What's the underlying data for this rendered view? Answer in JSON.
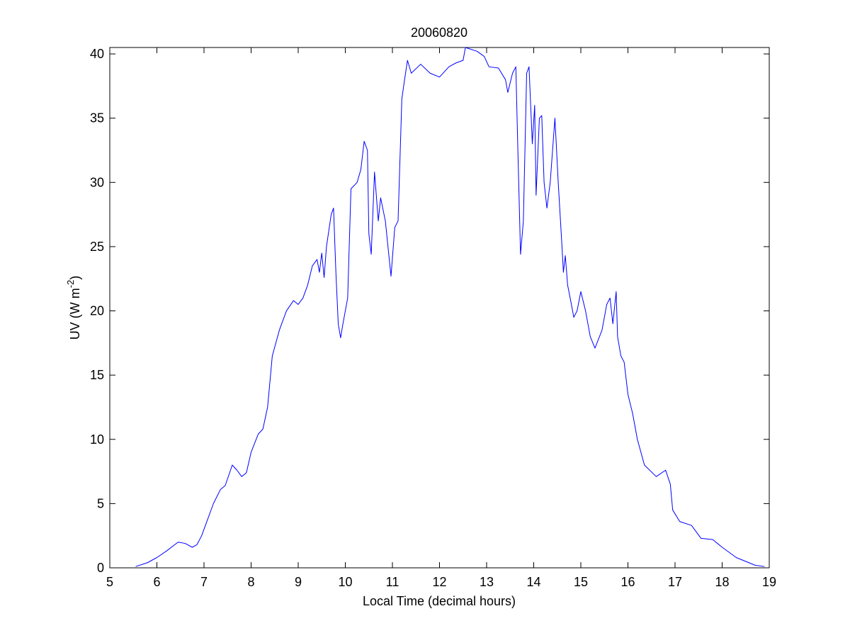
{
  "chart_data": {
    "type": "line",
    "title": "20060820",
    "xlabel": "Local Time (decimal hours)",
    "ylabel": {
      "text": "UV (W m",
      "superscript": "-2",
      "close": ")"
    },
    "xlim": [
      5,
      19
    ],
    "xticks": [
      5,
      6,
      7,
      8,
      9,
      10,
      11,
      12,
      13,
      14,
      15,
      16,
      17,
      18,
      19
    ],
    "ylim": [
      0,
      40.5
    ],
    "yticks": [
      0,
      5,
      10,
      15,
      20,
      25,
      30,
      35,
      40
    ],
    "grid": false,
    "series": [
      {
        "color": "#0000ff",
        "x": [
          5.55,
          5.8,
          6.0,
          6.2,
          6.45,
          6.6,
          6.75,
          6.85,
          6.95,
          7.05,
          7.2,
          7.35,
          7.45,
          7.6,
          7.7,
          7.8,
          7.9,
          8.0,
          8.15,
          8.25,
          8.35,
          8.45,
          8.6,
          8.75,
          8.9,
          9.0,
          9.1,
          9.2,
          9.3,
          9.4,
          9.45,
          9.5,
          9.55,
          9.6,
          9.7,
          9.75,
          9.8,
          9.85,
          9.9,
          9.95,
          10.05,
          10.12,
          10.25,
          10.33,
          10.4,
          10.47,
          10.5,
          10.55,
          10.62,
          10.7,
          10.75,
          10.85,
          10.97,
          11.05,
          11.12,
          11.2,
          11.25,
          11.32,
          11.4,
          11.6,
          11.8,
          12.0,
          12.2,
          12.35,
          12.5,
          12.55,
          12.8,
          12.95,
          13.05,
          13.25,
          13.4,
          13.45,
          13.55,
          13.62,
          13.66,
          13.72,
          13.78,
          13.85,
          13.9,
          13.97,
          14.02,
          14.05,
          14.12,
          14.17,
          14.22,
          14.28,
          14.35,
          14.45,
          14.52,
          14.6,
          14.63,
          14.67,
          14.72,
          14.8,
          14.85,
          14.92,
          15.0,
          15.1,
          15.2,
          15.3,
          15.45,
          15.55,
          15.62,
          15.68,
          15.75,
          15.78,
          15.85,
          15.92,
          16.0,
          16.1,
          16.2,
          16.35,
          16.6,
          16.8,
          16.9,
          16.95,
          17.1,
          17.35,
          17.55,
          17.8,
          18.0,
          18.3,
          18.7,
          18.9
        ],
        "values": [
          0.1,
          0.4,
          0.8,
          1.3,
          2.0,
          1.9,
          1.6,
          1.8,
          2.5,
          3.5,
          5.0,
          6.1,
          6.4,
          8.0,
          7.6,
          7.1,
          7.4,
          9.0,
          10.4,
          10.8,
          12.5,
          16.5,
          18.5,
          20.0,
          20.8,
          20.5,
          21.0,
          22.0,
          23.5,
          24.0,
          23.0,
          24.5,
          22.6,
          25.0,
          27.5,
          28.0,
          23.0,
          19.0,
          17.9,
          19.0,
          21.0,
          29.5,
          30.0,
          31.0,
          33.2,
          32.5,
          26.0,
          24.4,
          30.8,
          27.0,
          28.8,
          27.0,
          22.7,
          26.5,
          27.0,
          36.5,
          37.8,
          39.5,
          38.5,
          39.2,
          38.5,
          38.2,
          39.0,
          39.3,
          39.5,
          40.5,
          40.2,
          39.8,
          39.0,
          38.9,
          38.0,
          37.0,
          38.5,
          39.0,
          33.0,
          24.4,
          27.0,
          38.5,
          39.0,
          33.0,
          36.0,
          29.0,
          35.0,
          35.2,
          30.0,
          28.0,
          30.0,
          35.0,
          30.0,
          25.0,
          23.0,
          24.3,
          22.0,
          20.5,
          19.5,
          20.0,
          21.5,
          20.0,
          18.0,
          17.1,
          18.5,
          20.5,
          21.0,
          19.0,
          21.5,
          18.0,
          16.5,
          16.0,
          13.5,
          12.0,
          10.0,
          8.0,
          7.1,
          7.6,
          6.5,
          4.5,
          3.6,
          3.3,
          2.3,
          2.2,
          1.6,
          0.8,
          0.2,
          0.1
        ]
      }
    ]
  }
}
